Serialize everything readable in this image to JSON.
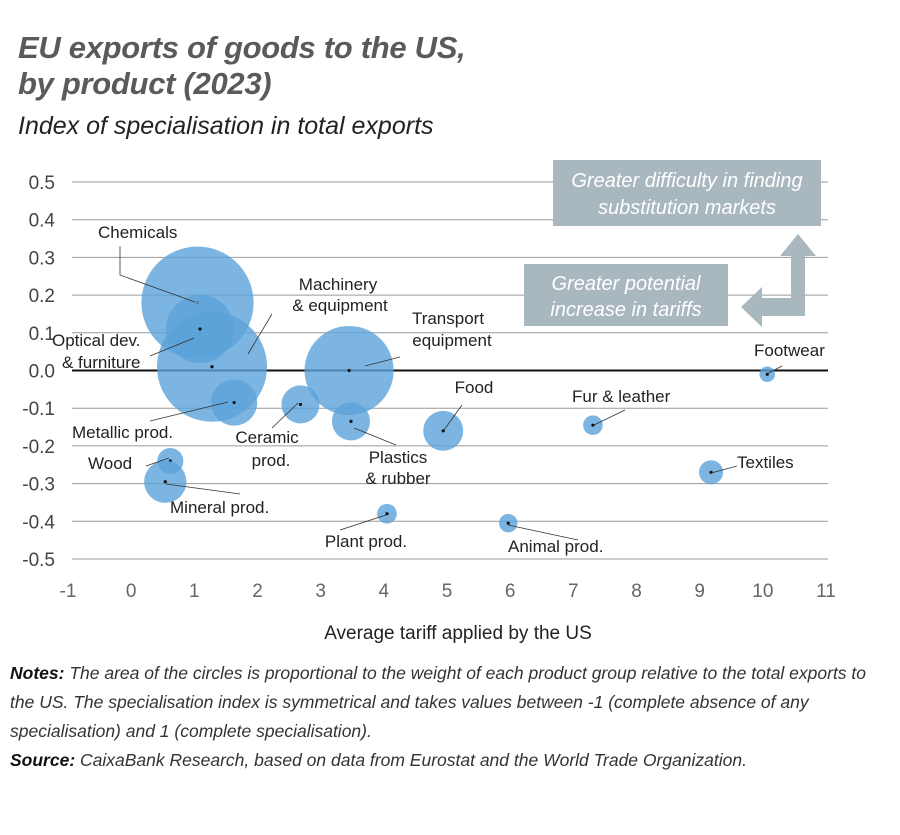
{
  "title_line1": "EU exports of goods to the US,",
  "title_line2": "by product (2023)",
  "subtitle": "Index of specialisation in total exports",
  "chart_data": {
    "type": "scatter",
    "subtype": "bubble",
    "xlabel": "Average tariff applied by the US",
    "ylabel": "",
    "xlim": [
      -1,
      11
    ],
    "ylim": [
      -0.5,
      0.5
    ],
    "x_ticks": [
      "-1",
      "0",
      "1",
      "2",
      "3",
      "4",
      "5",
      "6",
      "7",
      "8",
      "9",
      "10",
      "11"
    ],
    "y_ticks": [
      "0.5",
      "0.4",
      "0.3",
      "0.2",
      "0.1",
      "0.0",
      "-0.1",
      "-0.2",
      "-0.3",
      "-0.4",
      "-0.5"
    ],
    "grid": "horizontal",
    "bubble_color": "#5ba3d9",
    "size_meaning": "weight relative to total exports (estimated, %)",
    "points": [
      {
        "label": "Chemicals",
        "x": 1.05,
        "y": 0.18,
        "weight": 26
      },
      {
        "label": "Machinery & equipment",
        "x": 1.28,
        "y": 0.01,
        "weight": 25
      },
      {
        "label": "Transport equipment",
        "x": 3.45,
        "y": 0.0,
        "weight": 16.4
      },
      {
        "label": "Optical dev. & furniture",
        "x": 1.09,
        "y": 0.11,
        "weight": 9.6
      },
      {
        "label": "Metallic prod.",
        "x": 1.63,
        "y": -0.085,
        "weight": 4.4
      },
      {
        "label": "Ceramic prod.",
        "x": 2.68,
        "y": -0.09,
        "weight": 3.0
      },
      {
        "label": "Plastics & rubber",
        "x": 3.48,
        "y": -0.135,
        "weight": 3.0
      },
      {
        "label": "Food",
        "x": 4.94,
        "y": -0.16,
        "weight": 3.3
      },
      {
        "label": "Fur & leather",
        "x": 7.31,
        "y": -0.145,
        "weight": 0.8
      },
      {
        "label": "Footwear",
        "x": 10.07,
        "y": -0.01,
        "weight": 0.5
      },
      {
        "label": "Textiles",
        "x": 9.18,
        "y": -0.27,
        "weight": 1.2
      },
      {
        "label": "Wood",
        "x": 0.62,
        "y": -0.24,
        "weight": 1.4
      },
      {
        "label": "Mineral prod.",
        "x": 0.54,
        "y": -0.295,
        "weight": 3.7
      },
      {
        "label": "Plant prod.",
        "x": 4.05,
        "y": -0.38,
        "weight": 0.8
      },
      {
        "label": "Animal prod.",
        "x": 5.97,
        "y": -0.405,
        "weight": 0.7
      }
    ],
    "annotations": {
      "box_top": [
        "Greater difficulty in finding",
        "substitution markets"
      ],
      "box_bottom": [
        "Greater potential",
        "increase in tariffs"
      ],
      "annotation_color": "#a9b8be"
    }
  },
  "notes": {
    "notes_label": "Notes:",
    "notes_text": " The area of the circles is proportional to the weight of each product group relative to the total exports to the US. The specialisation index is symmetrical and takes values between -1 (complete absence of any specialisation) and 1 (complete specialisation).",
    "source_label": "Source:",
    "source_text": " CaixaBank Research, based on data from Eurostat and the World Trade Organization."
  }
}
